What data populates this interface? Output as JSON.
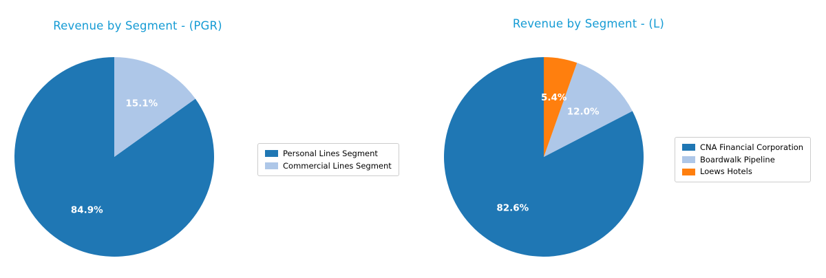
{
  "style": {
    "title_color": "#159bd4",
    "pct_text_color": "#ffffff",
    "legend_border_color": "#cccccc",
    "background": "#ffffff"
  },
  "chart_data": [
    {
      "type": "pie",
      "title": "Revenue by Segment - (PGR)",
      "legend_position": "right",
      "start_angle": 90,
      "direction": "counterclockwise",
      "pct_distance": 0.6,
      "series": [
        {
          "label": "Personal Lines Segment",
          "value": 84.9,
          "pct_label": "84.9%",
          "color": "#1f77b4"
        },
        {
          "label": "Commercial Lines Segment",
          "value": 15.1,
          "pct_label": "15.1%",
          "color": "#aec7e8"
        }
      ]
    },
    {
      "type": "pie",
      "title": "Revenue by Segment - (L)",
      "legend_position": "right",
      "start_angle": 90,
      "direction": "counterclockwise",
      "pct_distance": 0.6,
      "series": [
        {
          "label": "CNA Financial Corporation",
          "value": 82.6,
          "pct_label": "82.6%",
          "color": "#1f77b4"
        },
        {
          "label": "Boardwalk Pipeline",
          "value": 12.0,
          "pct_label": "12.0%",
          "color": "#aec7e8"
        },
        {
          "label": "Loews Hotels",
          "value": 5.4,
          "pct_label": "5.4%",
          "color": "#ff7f0e"
        }
      ]
    }
  ]
}
